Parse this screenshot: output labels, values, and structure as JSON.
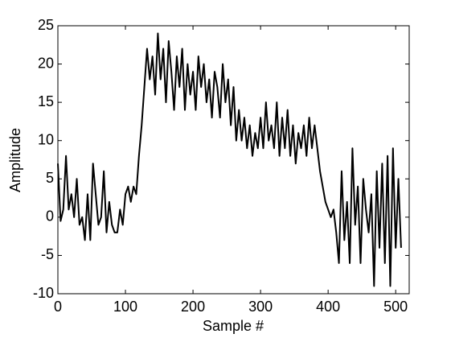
{
  "chart_data": {
    "type": "line",
    "xlabel": "Sample #",
    "ylabel": "Amplitude",
    "x": [
      0,
      4,
      8,
      12,
      16,
      20,
      24,
      28,
      32,
      36,
      40,
      44,
      48,
      52,
      56,
      60,
      64,
      68,
      72,
      76,
      80,
      84,
      88,
      92,
      96,
      100,
      104,
      108,
      112,
      116,
      120,
      124,
      128,
      132,
      136,
      140,
      144,
      148,
      152,
      156,
      160,
      164,
      168,
      172,
      176,
      180,
      184,
      188,
      192,
      196,
      200,
      204,
      208,
      212,
      216,
      220,
      224,
      228,
      232,
      236,
      240,
      244,
      248,
      252,
      256,
      260,
      264,
      268,
      272,
      276,
      280,
      284,
      288,
      292,
      296,
      300,
      304,
      308,
      312,
      316,
      320,
      324,
      328,
      332,
      336,
      340,
      344,
      348,
      352,
      356,
      360,
      364,
      368,
      372,
      376,
      380,
      384,
      388,
      392,
      396,
      400,
      404,
      408,
      412,
      416,
      420,
      424,
      428,
      432,
      436,
      440,
      444,
      448,
      452,
      456,
      460,
      464,
      468,
      472,
      476,
      480,
      484,
      488,
      492,
      496,
      500,
      504,
      508
    ],
    "series": [
      {
        "color": "#000000",
        "values": [
          7,
          -0.5,
          1,
          8,
          1,
          3,
          0,
          5,
          -1,
          0,
          -3,
          3,
          -3,
          7,
          3,
          -1,
          0,
          6,
          -2,
          2,
          -1,
          -2,
          -2,
          1,
          -1,
          3,
          4,
          2,
          4,
          3,
          8,
          12,
          17,
          22,
          18,
          21,
          16,
          24,
          18,
          22,
          15,
          23,
          19,
          14,
          21,
          17,
          22,
          14,
          20,
          16,
          19,
          14,
          21,
          17,
          20,
          15,
          18,
          13,
          19,
          17,
          13,
          20,
          15,
          18,
          12,
          17,
          10,
          14,
          10,
          13,
          9,
          12,
          8,
          11,
          9,
          13,
          9,
          15,
          10,
          12,
          9,
          15,
          8,
          13,
          9,
          14,
          8,
          12,
          7,
          11,
          9,
          12,
          8,
          13,
          9,
          12,
          9,
          6,
          4,
          2,
          1,
          0,
          1,
          -2,
          -6,
          6,
          -3,
          2,
          -6,
          9,
          -1,
          4,
          -6,
          5,
          1,
          -2,
          3,
          -9,
          6,
          -4,
          7,
          -6,
          8,
          -9,
          9,
          -4,
          5,
          -4
        ]
      }
    ],
    "xlim": [
      0,
      520
    ],
    "ylim": [
      -10,
      25
    ],
    "xticks": [
      0,
      100,
      200,
      300,
      400,
      500
    ],
    "yticks": [
      -10,
      -5,
      0,
      5,
      10,
      15,
      20,
      25
    ]
  }
}
